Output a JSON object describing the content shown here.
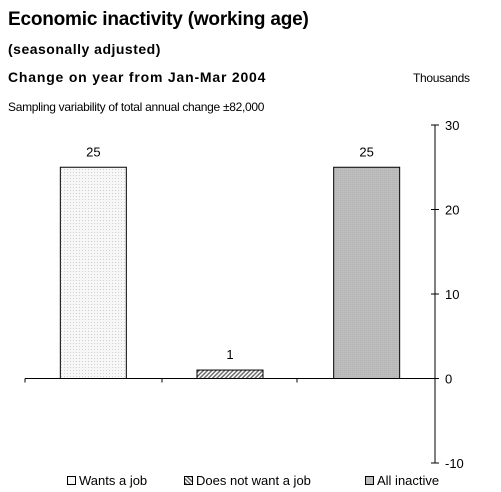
{
  "title": "Economic inactivity (working age)",
  "subtitle": "(seasonally adjusted)",
  "period": "Change on year from Jan-Mar 2004",
  "units": "Thousands",
  "note": "Sampling variability of total annual change ±82,000",
  "colors": {
    "wants_a_job": "#f2f2f2",
    "does_not_want_a_job": "#8c8c8c",
    "all_inactive": "#bdbdbd"
  },
  "chart_data": {
    "type": "bar",
    "categories": [
      "Wants a job",
      "Does not want a job",
      "All inactive"
    ],
    "values": [
      25,
      1,
      25
    ],
    "data_labels": [
      "25",
      "1",
      "25"
    ],
    "ylim": [
      -10,
      30
    ],
    "yticks": [
      30,
      20,
      10,
      0,
      -10
    ],
    "ytick_labels": [
      "30",
      "20",
      "10",
      "0",
      "-10"
    ],
    "y_axis_side": "right",
    "grid": false,
    "legend_placement": "bottom"
  },
  "legend": [
    {
      "label": "Wants a job"
    },
    {
      "label": "Does not want a job"
    },
    {
      "label": "All inactive"
    }
  ]
}
